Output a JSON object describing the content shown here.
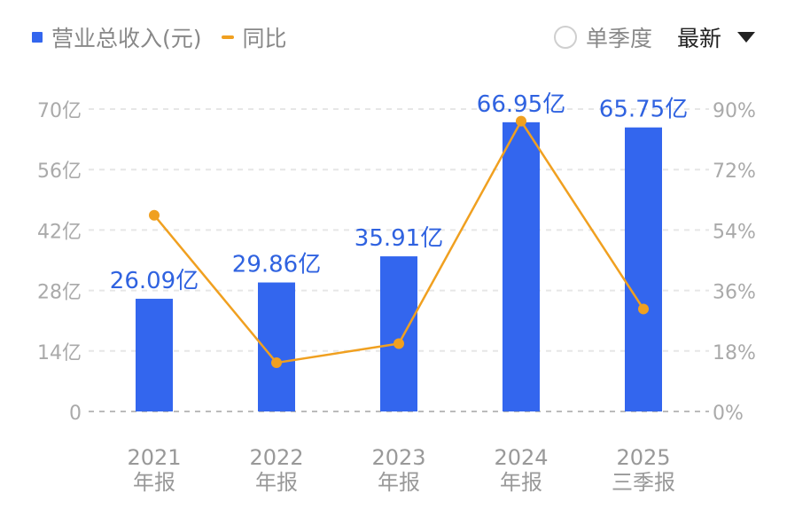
{
  "legend": {
    "bar_label": "营业总收入(元)",
    "line_label": "同比"
  },
  "controls": {
    "quarter_label": "单季度",
    "dropdown_label": "最新"
  },
  "colors": {
    "bar": "#3366ee",
    "line": "#f0a020",
    "bar_label": "#2f62e0",
    "axis_text": "#aaaaaa",
    "grid": "#e6e6e6"
  },
  "chart_data": {
    "type": "bar",
    "categories": [
      {
        "year": "2021",
        "period": "年报"
      },
      {
        "year": "2022",
        "period": "年报"
      },
      {
        "year": "2023",
        "period": "年报"
      },
      {
        "year": "2024",
        "period": "年报"
      },
      {
        "year": "2025",
        "period": "三季报"
      }
    ],
    "series": [
      {
        "name": "营业总收入(元)",
        "type": "bar",
        "axis": "left",
        "values": [
          26.09,
          29.86,
          35.91,
          66.95,
          65.75
        ],
        "labels": [
          "26.09亿",
          "29.86亿",
          "35.91亿",
          "66.95亿",
          "65.75亿"
        ]
      },
      {
        "name": "同比",
        "type": "line",
        "axis": "right",
        "values": [
          58.4,
          14.5,
          20.2,
          86.4,
          30.5
        ]
      }
    ],
    "left_axis": {
      "min": 0,
      "max": 70,
      "ticks": [
        "0",
        "14亿",
        "28亿",
        "42亿",
        "56亿",
        "70亿"
      ]
    },
    "right_axis": {
      "min": 0,
      "max": 90,
      "ticks": [
        "0%",
        "18%",
        "36%",
        "54%",
        "72%",
        "90%"
      ]
    },
    "grid": true
  }
}
